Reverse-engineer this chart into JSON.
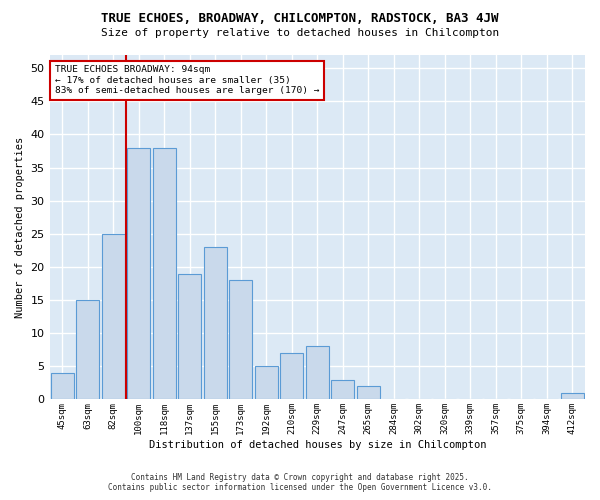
{
  "title": "TRUE ECHOES, BROADWAY, CHILCOMPTON, RADSTOCK, BA3 4JW",
  "subtitle": "Size of property relative to detached houses in Chilcompton",
  "xlabel": "Distribution of detached houses by size in Chilcompton",
  "ylabel": "Number of detached properties",
  "categories": [
    "45sqm",
    "63sqm",
    "82sqm",
    "100sqm",
    "118sqm",
    "137sqm",
    "155sqm",
    "173sqm",
    "192sqm",
    "210sqm",
    "229sqm",
    "247sqm",
    "265sqm",
    "284sqm",
    "302sqm",
    "320sqm",
    "339sqm",
    "357sqm",
    "375sqm",
    "394sqm",
    "412sqm"
  ],
  "values": [
    4,
    15,
    25,
    38,
    38,
    19,
    23,
    18,
    5,
    7,
    8,
    3,
    2,
    0,
    0,
    0,
    0,
    0,
    0,
    0,
    1
  ],
  "bar_color": "#c9d9eb",
  "bar_edge_color": "#5b9bd5",
  "plot_bg_color": "#dce9f5",
  "fig_bg_color": "#ffffff",
  "grid_color": "#ffffff",
  "annotation_text": "TRUE ECHOES BROADWAY: 94sqm\n← 17% of detached houses are smaller (35)\n83% of semi-detached houses are larger (170) →",
  "annotation_box_color": "#ffffff",
  "annotation_box_edge": "#cc0000",
  "vline_color": "#cc0000",
  "ylim": [
    0,
    52
  ],
  "yticks": [
    0,
    5,
    10,
    15,
    20,
    25,
    30,
    35,
    40,
    45,
    50
  ],
  "footer_line1": "Contains HM Land Registry data © Crown copyright and database right 2025.",
  "footer_line2": "Contains public sector information licensed under the Open Government Licence v3.0."
}
